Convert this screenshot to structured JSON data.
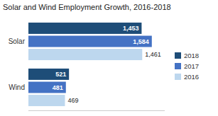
{
  "chart_data": {
    "type": "bar",
    "orientation": "horizontal",
    "title": "Solar and Wind Employment Growth, 2016-2018",
    "categories": [
      "Solar",
      "Wind"
    ],
    "series": [
      {
        "name": "2018",
        "color": "#1e4d78",
        "values": [
          1453,
          521
        ],
        "value_labels": [
          "1,453",
          "521"
        ]
      },
      {
        "name": "2017",
        "color": "#4472c4",
        "values": [
          1584,
          481
        ],
        "value_labels": [
          "1,584",
          "481"
        ]
      },
      {
        "name": "2016",
        "color": "#bdd7ee",
        "values": [
          1461,
          469
        ],
        "value_labels": [
          "1,461",
          "469"
        ]
      }
    ],
    "xlim": [
      0,
      1750
    ],
    "data_labels": true,
    "tick_labels": "y",
    "legend": "right"
  }
}
